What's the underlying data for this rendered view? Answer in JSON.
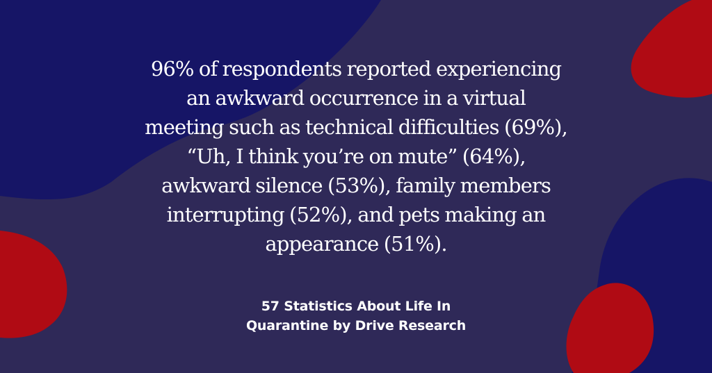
{
  "graphic": {
    "quote_lines": [
      "96% of respondents reported experiencing",
      "an awkward occurrence in a virtual",
      "meeting such as technical difficulties (69%),",
      "“Uh, I think you’re on mute” (64%),",
      "awkward silence (53%), family members",
      "interrupting (52%), and pets making an",
      "appearance (51%)."
    ],
    "source_lines": [
      "57 Statistics About Life In",
      "Quarantine by Drive Research"
    ]
  },
  "colors": {
    "background": "#2f2958",
    "navy_blob": "#161566",
    "red_blob": "#b00b14",
    "text": "#ffffff"
  }
}
